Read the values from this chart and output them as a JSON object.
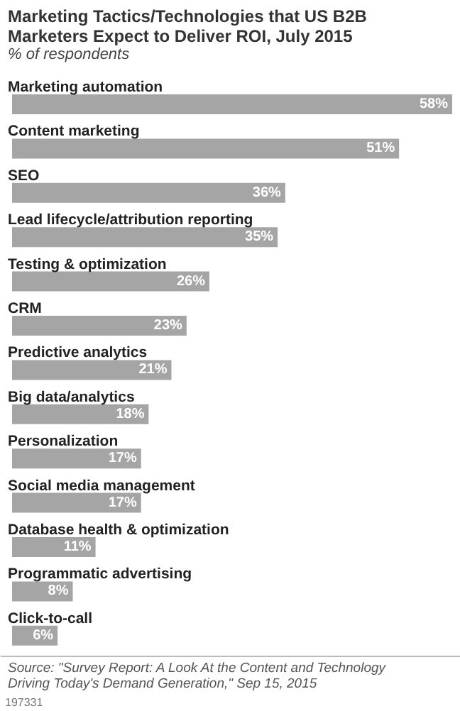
{
  "chart_data": {
    "type": "bar",
    "orientation": "horizontal",
    "title": "Marketing Tactics/Technologies that US B2B Marketers Expect to Deliver ROI, July 2015",
    "subtitle": "% of respondents",
    "categories": [
      "Marketing automation",
      "Content marketing",
      "SEO",
      "Lead lifecycle/attribution reporting",
      "Testing & optimization",
      "CRM",
      "Predictive analytics",
      "Big data/analytics",
      "Personalization",
      "Social media management",
      "Database health & optimization",
      "Programmatic advertising",
      "Click-to-call"
    ],
    "values": [
      58,
      51,
      36,
      35,
      26,
      23,
      21,
      18,
      17,
      17,
      11,
      8,
      6
    ],
    "value_labels": [
      "58%",
      "51%",
      "36%",
      "35%",
      "26%",
      "23%",
      "21%",
      "18%",
      "17%",
      "17%",
      "11%",
      "8%",
      "6%"
    ],
    "color": "#a5a5a5",
    "annotations": [
      "Source: \"Survey Report: A Look At the Content and Technology Driving Today's Demand Generation,\" Sep 15, 2015",
      "197331"
    ]
  }
}
